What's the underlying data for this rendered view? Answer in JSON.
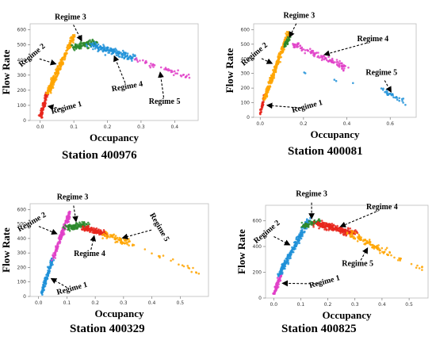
{
  "chart_data": [
    {
      "type": "scatter",
      "caption": "Station 400976",
      "xlabel": "Occupancy",
      "ylabel": "Flow Rate",
      "xlim": [
        -0.03,
        0.47
      ],
      "ylim": [
        0,
        640
      ],
      "xticks": [
        "0.0",
        "0.1",
        "0.2",
        "0.3",
        "0.4"
      ],
      "yticks": [
        "0",
        "100",
        "200",
        "300",
        "400",
        "500",
        "600"
      ],
      "series": [
        {
          "name": "Regime 1",
          "color": "#e8261c",
          "clusters": [
            {
              "x": [
                0.0,
                0.02
              ],
              "y": [
                20,
                180
              ],
              "n": 90,
              "jx": 0.006,
              "jy": 15
            }
          ]
        },
        {
          "name": "Regime 2",
          "color": "#ffa500",
          "clusters": [
            {
              "x": [
                0.02,
                0.1
              ],
              "y": [
                170,
                560
              ],
              "n": 260,
              "jx": 0.009,
              "jy": 25
            }
          ]
        },
        {
          "name": "Regime 3",
          "color": "#2d8a2d",
          "clusters": [
            {
              "x": [
                0.1,
                0.16
              ],
              "y": [
                480,
                520
              ],
              "n": 110,
              "jx": 0.02,
              "jy": 30
            }
          ]
        },
        {
          "name": "Regime 4",
          "color": "#1e90d8",
          "clusters": [
            {
              "x": [
                0.15,
                0.28
              ],
              "y": [
                500,
                410
              ],
              "n": 150,
              "jx": 0.025,
              "jy": 30
            }
          ]
        },
        {
          "name": "Regime 5",
          "color": "#e040c8",
          "clusters": [
            {
              "x": [
                0.27,
                0.44
              ],
              "y": [
                410,
                290
              ],
              "n": 45,
              "jx": 0.02,
              "jy": 25
            }
          ]
        }
      ],
      "annotations": [
        {
          "text": "Regime 3",
          "at": [
            0.09,
            670
          ]
        },
        {
          "text": "Regime 2",
          "at": [
            -0.02,
            420
          ],
          "rotate": -40
        },
        {
          "text": "Regime 1",
          "at": [
            0.08,
            70
          ],
          "rotate": -15
        },
        {
          "text": "Regime 4",
          "at": [
            0.26,
            210
          ],
          "rotate": -10
        },
        {
          "text": "Regime 5",
          "at": [
            0.37,
            110
          ]
        }
      ]
    },
    {
      "type": "scatter",
      "caption": "Station 400081",
      "xlabel": "Occupancy",
      "ylabel": "Flow Rate",
      "xlim": [
        -0.03,
        0.72
      ],
      "ylim": [
        0,
        640
      ],
      "xticks": [
        "0.0",
        "0.2",
        "0.4",
        "0.6"
      ],
      "yticks": [
        "0",
        "100",
        "200",
        "300",
        "400",
        "500",
        "600"
      ],
      "series": [
        {
          "name": "Regime 1",
          "color": "#e8261c",
          "clusters": [
            {
              "x": [
                0.0,
                0.02
              ],
              "y": [
                20,
                150
              ],
              "n": 60,
              "jx": 0.006,
              "jy": 15
            }
          ]
        },
        {
          "name": "Regime 2",
          "color": "#ffa500",
          "clusters": [
            {
              "x": [
                0.02,
                0.13
              ],
              "y": [
                130,
                580
              ],
              "n": 260,
              "jx": 0.012,
              "jy": 25
            }
          ]
        },
        {
          "name": "Regime 3",
          "color": "#2d8a2d",
          "clusters": [
            {
              "x": [
                0.11,
                0.14
              ],
              "y": [
                480,
                560
              ],
              "n": 40,
              "jx": 0.01,
              "jy": 25
            }
          ]
        },
        {
          "name": "Regime 4",
          "color": "#e040c8",
          "clusters": [
            {
              "x": [
                0.15,
                0.4
              ],
              "y": [
                500,
                340
              ],
              "n": 110,
              "jx": 0.03,
              "jy": 30
            }
          ]
        },
        {
          "name": "Regime 5",
          "color": "#1e90d8",
          "clusters": [
            {
              "x": [
                0.55,
                0.68
              ],
              "y": [
                200,
                90
              ],
              "n": 30,
              "jx": 0.02,
              "jy": 20
            },
            {
              "x": [
                0.2,
                0.45
              ],
              "y": [
                300,
                220
              ],
              "n": 5,
              "jx": 0.02,
              "jy": 20
            }
          ]
        }
      ],
      "annotations": [
        {
          "text": "Regime 3",
          "at": [
            0.18,
            680
          ]
        },
        {
          "text": "Regime 2",
          "at": [
            -0.02,
            420
          ],
          "rotate": -40
        },
        {
          "text": "Regime 1",
          "at": [
            0.22,
            60
          ],
          "rotate": -15
        },
        {
          "text": "Regime 4",
          "at": [
            0.52,
            520
          ]
        },
        {
          "text": "Regime 5",
          "at": [
            0.56,
            290
          ]
        }
      ]
    },
    {
      "type": "scatter",
      "caption": "Station 400329",
      "xlabel": "Occupancy",
      "ylabel": "Flow Rate",
      "xlim": [
        -0.03,
        0.6
      ],
      "ylim": [
        0,
        640
      ],
      "xticks": [
        "0.0",
        "0.1",
        "0.2",
        "0.3",
        "0.4",
        "0.5"
      ],
      "yticks": [
        "0",
        "100",
        "200",
        "300",
        "400",
        "500",
        "600"
      ],
      "series": [
        {
          "name": "Regime 1",
          "color": "#1e90d8",
          "clusters": [
            {
              "x": [
                0.01,
                0.05
              ],
              "y": [
                20,
                260
              ],
              "n": 120,
              "jx": 0.007,
              "jy": 20
            }
          ]
        },
        {
          "name": "Regime 2",
          "color": "#e040c8",
          "clusters": [
            {
              "x": [
                0.05,
                0.11
              ],
              "y": [
                260,
                580
              ],
              "n": 150,
              "jx": 0.008,
              "jy": 25
            }
          ]
        },
        {
          "name": "Regime 3",
          "color": "#2d8a2d",
          "clusters": [
            {
              "x": [
                0.1,
                0.17
              ],
              "y": [
                470,
                500
              ],
              "n": 110,
              "jx": 0.02,
              "jy": 30
            }
          ]
        },
        {
          "name": "Regime 4",
          "color": "#e8261c",
          "clusters": [
            {
              "x": [
                0.16,
                0.24
              ],
              "y": [
                470,
                430
              ],
              "n": 110,
              "jx": 0.02,
              "jy": 30
            }
          ]
        },
        {
          "name": "Regime 5",
          "color": "#ffa500",
          "clusters": [
            {
              "x": [
                0.23,
                0.33
              ],
              "y": [
                430,
                360
              ],
              "n": 70,
              "jx": 0.025,
              "jy": 30
            },
            {
              "x": [
                0.33,
                0.58
              ],
              "y": [
                360,
                150
              ],
              "n": 20,
              "jx": 0.02,
              "jy": 25
            }
          ]
        }
      ],
      "annotations": [
        {
          "text": "Regime 3",
          "at": [
            0.12,
            670
          ]
        },
        {
          "text": "Regime 2",
          "at": [
            -0.02,
            500
          ],
          "rotate": -30
        },
        {
          "text": "Regime 1",
          "at": [
            0.12,
            40
          ],
          "rotate": -15
        },
        {
          "text": "Regime 4",
          "at": [
            0.18,
            280
          ]
        },
        {
          "text": "Regime 5",
          "at": [
            0.42,
            470
          ],
          "rotate": 60
        }
      ]
    },
    {
      "type": "scatter",
      "caption": "Station 400825",
      "xlabel": "Occupancy",
      "ylabel": "Flow Rate",
      "xlim": [
        -0.03,
        0.57
      ],
      "ylim": [
        0,
        720
      ],
      "xticks": [
        "0.0",
        "0.1",
        "0.2",
        "0.3",
        "0.4",
        "0.5"
      ],
      "yticks": [
        "0",
        "200",
        "400",
        "600"
      ],
      "series": [
        {
          "name": "Regime 1",
          "color": "#e040c8",
          "clusters": [
            {
              "x": [
                0.0,
                0.03
              ],
              "y": [
                30,
                200
              ],
              "n": 80,
              "jx": 0.007,
              "jy": 20
            }
          ]
        },
        {
          "name": "Regime 2",
          "color": "#1e90d8",
          "clusters": [
            {
              "x": [
                0.02,
                0.13
              ],
              "y": [
                180,
                610
              ],
              "n": 240,
              "jx": 0.012,
              "jy": 30
            }
          ]
        },
        {
          "name": "Regime 3",
          "color": "#2d8a2d",
          "clusters": [
            {
              "x": [
                0.11,
                0.17
              ],
              "y": [
                560,
                600
              ],
              "n": 80,
              "jx": 0.015,
              "jy": 30
            }
          ]
        },
        {
          "name": "Regime 4",
          "color": "#e8261c",
          "clusters": [
            {
              "x": [
                0.16,
                0.3
              ],
              "y": [
                580,
                500
              ],
              "n": 220,
              "jx": 0.03,
              "jy": 35
            }
          ]
        },
        {
          "name": "Regime 5",
          "color": "#ffa500",
          "clusters": [
            {
              "x": [
                0.28,
                0.43
              ],
              "y": [
                500,
                340
              ],
              "n": 90,
              "jx": 0.025,
              "jy": 35
            },
            {
              "x": [
                0.43,
                0.55
              ],
              "y": [
                330,
                230
              ],
              "n": 15,
              "jx": 0.02,
              "jy": 25
            }
          ]
        }
      ],
      "annotations": [
        {
          "text": "Regime 3",
          "at": [
            0.14,
            790
          ]
        },
        {
          "text": "Regime 2",
          "at": [
            -0.02,
            500
          ],
          "rotate": -40
        },
        {
          "text": "Regime 1",
          "at": [
            0.19,
            110
          ],
          "rotate": -15
        },
        {
          "text": "Regime 4",
          "at": [
            0.4,
            690
          ]
        },
        {
          "text": "Regime 5",
          "at": [
            0.31,
            250
          ]
        }
      ]
    }
  ]
}
